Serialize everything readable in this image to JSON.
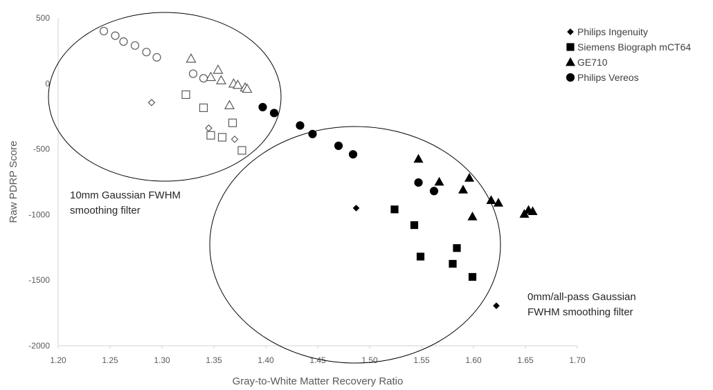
{
  "chart_data": {
    "type": "scatter",
    "title": "",
    "xlabel": "Gray-to-White Matter Recovery Ratio",
    "ylabel": "Raw PDRP Score",
    "xlim": [
      1.2,
      1.7
    ],
    "ylim": [
      -2000,
      500
    ],
    "xticks": [
      "1.20",
      "1.25",
      "1.30",
      "1.35",
      "1.40",
      "1.45",
      "1.50",
      "1.55",
      "1.60",
      "1.65",
      "1.70"
    ],
    "yticks": [
      "500",
      "0",
      "-500",
      "-1000",
      "-1500",
      "-2000"
    ],
    "grid": false,
    "legend_position": "top-right",
    "series": [
      {
        "name": "Philips Ingenuity",
        "marker": "diamond",
        "filled_points": [
          [
            1.487,
            -950
          ],
          [
            1.622,
            -1695
          ]
        ],
        "open_points": [
          [
            1.29,
            -145
          ],
          [
            1.345,
            -340
          ],
          [
            1.37,
            -425
          ]
        ]
      },
      {
        "name": "Siemens Biograph mCT64",
        "marker": "square",
        "filled_points": [
          [
            1.524,
            -960
          ],
          [
            1.543,
            -1080
          ],
          [
            1.549,
            -1320
          ],
          [
            1.58,
            -1375
          ],
          [
            1.584,
            -1255
          ],
          [
            1.599,
            -1475
          ]
        ],
        "open_points": [
          [
            1.323,
            -85
          ],
          [
            1.34,
            -185
          ],
          [
            1.347,
            -395
          ],
          [
            1.358,
            -410
          ],
          [
            1.368,
            -300
          ],
          [
            1.377,
            -510
          ]
        ]
      },
      {
        "name": "GE710",
        "marker": "triangle",
        "filled_points": [
          [
            1.547,
            -575
          ],
          [
            1.567,
            -750
          ],
          [
            1.59,
            -810
          ],
          [
            1.596,
            -720
          ],
          [
            1.599,
            -1015
          ],
          [
            1.617,
            -890
          ],
          [
            1.624,
            -910
          ],
          [
            1.649,
            -995
          ],
          [
            1.653,
            -965
          ],
          [
            1.657,
            -975
          ]
        ],
        "open_points": [
          [
            1.328,
            190
          ],
          [
            1.347,
            50
          ],
          [
            1.354,
            105
          ],
          [
            1.357,
            25
          ],
          [
            1.365,
            -165
          ],
          [
            1.369,
            0
          ],
          [
            1.373,
            -10
          ],
          [
            1.38,
            -30
          ],
          [
            1.382,
            -40
          ]
        ]
      },
      {
        "name": "Philips Vereos",
        "marker": "circle",
        "filled_points": [
          [
            1.397,
            -180
          ],
          [
            1.408,
            -225
          ],
          [
            1.433,
            -320
          ],
          [
            1.445,
            -385
          ],
          [
            1.47,
            -475
          ],
          [
            1.484,
            -540
          ],
          [
            1.547,
            -755
          ],
          [
            1.562,
            -820
          ]
        ],
        "open_points": [
          [
            1.244,
            400
          ],
          [
            1.255,
            365
          ],
          [
            1.263,
            320
          ],
          [
            1.274,
            290
          ],
          [
            1.285,
            240
          ],
          [
            1.295,
            200
          ],
          [
            1.33,
            75
          ],
          [
            1.34,
            40
          ]
        ]
      }
    ],
    "annotations": [
      {
        "text_lines": [
          "10mm Gaussian FWHM",
          "smoothing filter"
        ]
      },
      {
        "text_lines": [
          "0mm/all-pass Gaussian",
          "FWHM smoothing filter"
        ]
      }
    ]
  }
}
